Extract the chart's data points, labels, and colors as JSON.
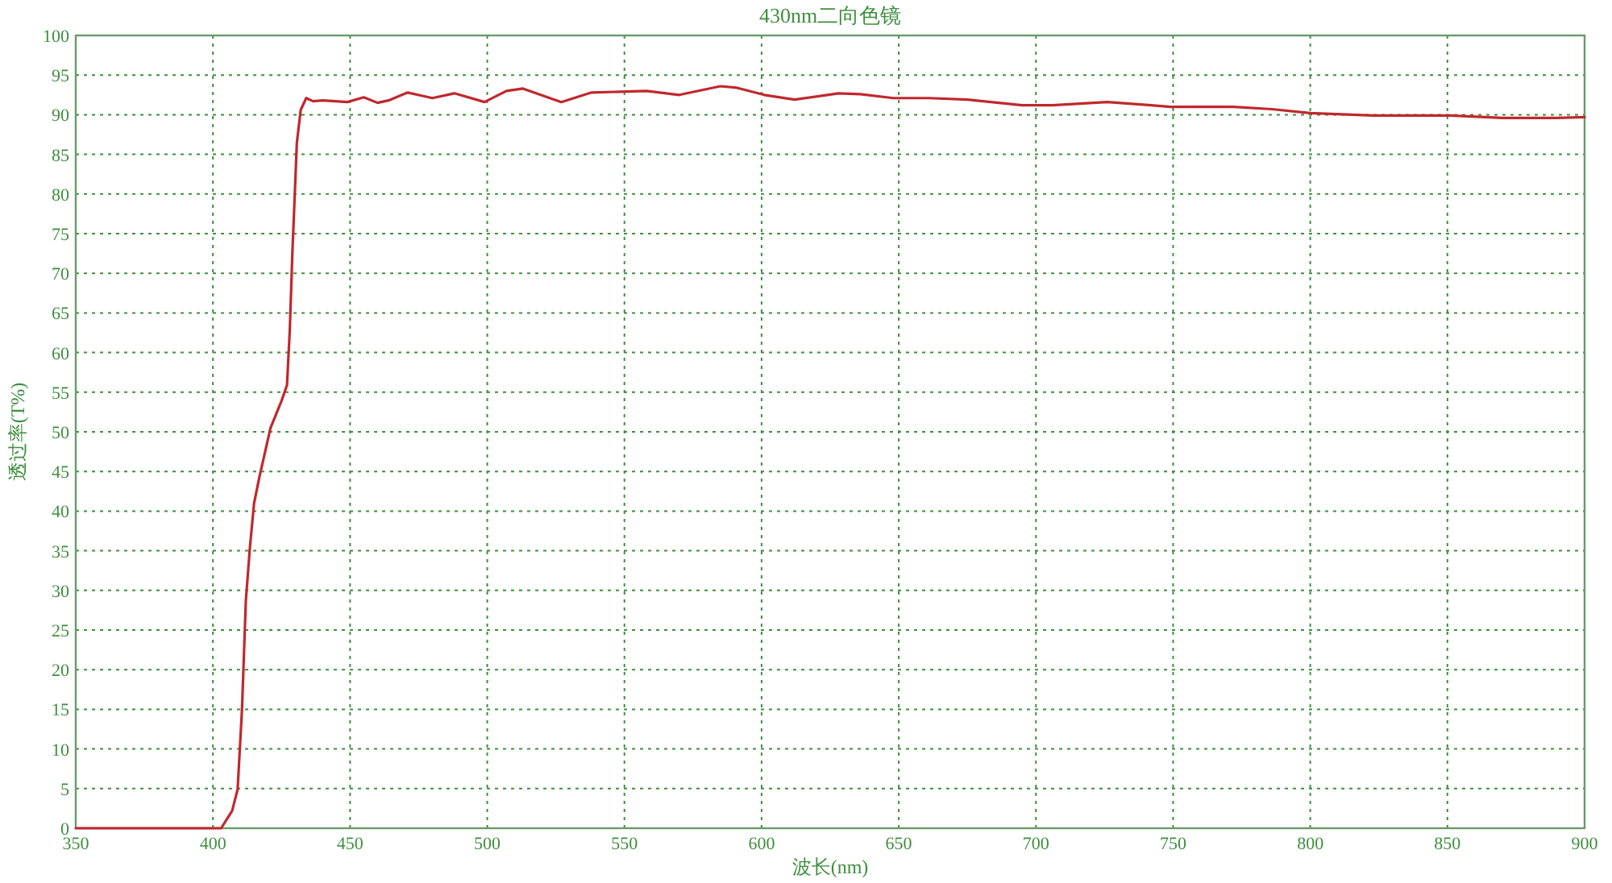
{
  "chart_data": {
    "type": "line",
    "title": "430nm二向色镜",
    "xlabel": "波长(nm)",
    "ylabel": "透过率(T%)",
    "xlim": [
      350,
      900
    ],
    "ylim": [
      0,
      100
    ],
    "xticks": [
      350,
      400,
      450,
      500,
      550,
      600,
      650,
      700,
      750,
      800,
      850,
      900
    ],
    "yticks": [
      0,
      5,
      10,
      15,
      20,
      25,
      30,
      35,
      40,
      45,
      50,
      55,
      60,
      65,
      70,
      75,
      80,
      85,
      90,
      95,
      100
    ],
    "grid": true,
    "line_style": "solid",
    "marker": "none",
    "series": [
      {
        "color": "#c0282d",
        "x": [
          350,
          403,
          407,
          409,
          410.6,
          412,
          413.5,
          415,
          417,
          421,
          425,
          427,
          428,
          429,
          430.6,
          432,
          434,
          436.5,
          440,
          449,
          455,
          460,
          464,
          471,
          480,
          488,
          499,
          507,
          513,
          527,
          538,
          558,
          570,
          585,
          591,
          601,
          612,
          628,
          636,
          648,
          661,
          675,
          695,
          706,
          726,
          742,
          749,
          772,
          786,
          800,
          823,
          851,
          870,
          890,
          900
        ],
        "values": [
          0,
          0,
          2.2,
          4.9,
          15,
          28.7,
          35.5,
          41,
          44.4,
          50.5,
          53.9,
          55.9,
          62.7,
          72.9,
          86.5,
          90.6,
          92.1,
          91.7,
          91.8,
          91.6,
          92.2,
          91.5,
          91.8,
          92.8,
          92.1,
          92.7,
          91.6,
          93,
          93.3,
          91.6,
          92.8,
          93,
          92.5,
          93.6,
          93.4,
          92.5,
          91.9,
          92.7,
          92.6,
          92.1,
          92.1,
          91.9,
          91.2,
          91.2,
          91.6,
          91.2,
          91,
          91,
          90.7,
          90.2,
          89.9,
          89.9,
          89.6,
          89.6,
          89.7
        ]
      }
    ]
  }
}
